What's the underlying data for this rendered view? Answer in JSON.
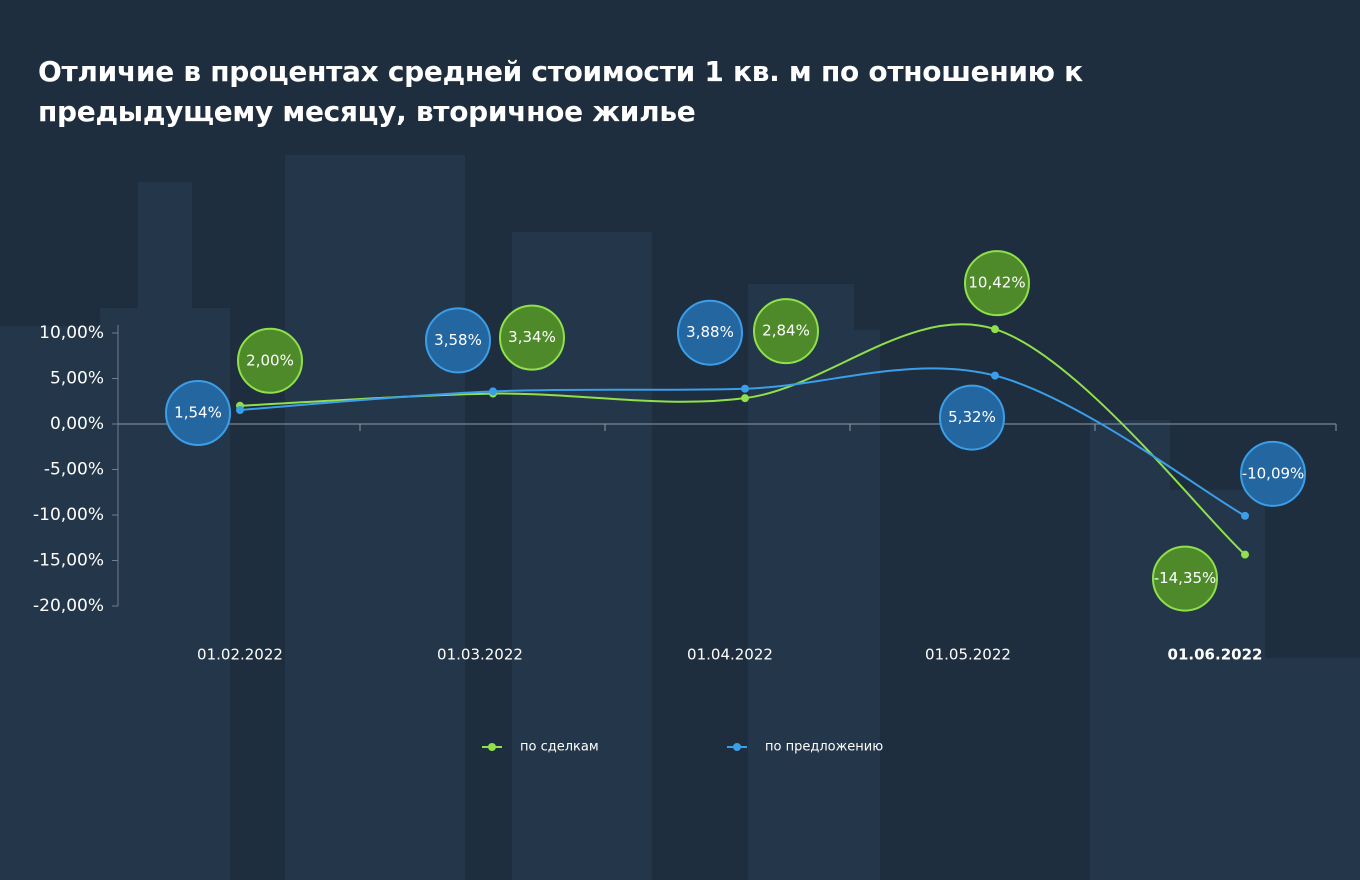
{
  "chart_data": {
    "type": "line",
    "title": "Отличие в процентах средней стоимости 1 кв. м по отношению к предыдущему месяцу, вторичное жилье",
    "categories": [
      "01.02.2022",
      "01.03.2022",
      "01.04.2022",
      "01.05.2022",
      "01.06.2022"
    ],
    "series": [
      {
        "name": "по сделкам",
        "color": "#8fe04a",
        "bubble": "#4e8a2a",
        "values": [
          2.0,
          3.34,
          2.84,
          10.42,
          -14.35
        ],
        "value_labels": [
          "2,00%",
          "3,34%",
          "2,84%",
          "10,42%",
          "-14,35%"
        ]
      },
      {
        "name": "по предложению",
        "color": "#3a9ee8",
        "bubble": "#2466a0",
        "values": [
          1.54,
          3.58,
          3.88,
          5.32,
          -10.09
        ],
        "value_labels": [
          "1,54%",
          "3,58%",
          "3,88%",
          "5,32%",
          "-10,09%"
        ]
      }
    ],
    "ylim": [
      -20,
      10
    ],
    "yticks": [
      {
        "value": 10,
        "label": "10,00%"
      },
      {
        "value": 5,
        "label": "5,00%"
      },
      {
        "value": 0,
        "label": "0,00%"
      },
      {
        "value": -5,
        "label": "-5,00%"
      },
      {
        "value": -10,
        "label": "-10,00%"
      },
      {
        "value": -15,
        "label": "-15,00%"
      },
      {
        "value": -20,
        "label": "-20,00%"
      }
    ]
  }
}
